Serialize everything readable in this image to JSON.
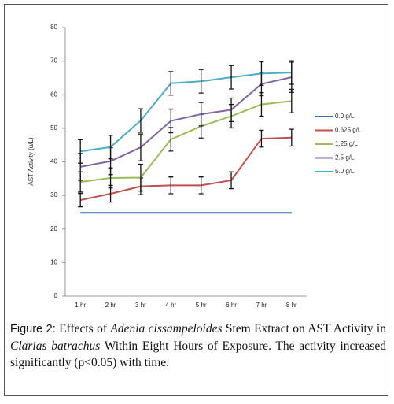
{
  "chart_data": {
    "type": "line",
    "ylabel": "AST Activity (u/L)",
    "categories": [
      "1 hr",
      "2 hr",
      "3 hr",
      "4 hr",
      "5 hr",
      "6 hr",
      "7 hr",
      "8 hr"
    ],
    "ylim": [
      0,
      80
    ],
    "yticks": [
      0,
      10,
      20,
      30,
      40,
      50,
      60,
      70,
      80
    ],
    "series": [
      {
        "name": "0.0 g/L",
        "color": "#3a6fb0",
        "values": [
          24.8,
          24.8,
          24.8,
          24.8,
          24.8,
          24.8,
          24.8,
          24.8
        ]
      },
      {
        "name": "0.625 g/L",
        "color": "#c0504d",
        "values": [
          28.6,
          30.5,
          32.7,
          33,
          33,
          34.5,
          46.9,
          47.2
        ],
        "errors": [
          2,
          2.5,
          2.5,
          2.5,
          2.5,
          2.5,
          2.5,
          2.5
        ]
      },
      {
        "name": "1.25 g/L",
        "color": "#9bbb59",
        "values": [
          34,
          35.2,
          35.3,
          46.7,
          50.6,
          53.6,
          57.1,
          58.1
        ],
        "errors": [
          3,
          3,
          4,
          3.5,
          3.5,
          3.5,
          3.5,
          3.5
        ]
      },
      {
        "name": "2.5 g/L",
        "color": "#8064a2",
        "values": [
          38.5,
          40.2,
          44.3,
          52.2,
          54.2,
          55.5,
          63.2,
          65.2
        ],
        "errors": [
          4,
          4,
          4,
          3.5,
          3.5,
          3.5,
          3.5,
          4.5
        ]
      },
      {
        "name": "5.0 g/L",
        "color": "#4bacc6",
        "values": [
          43.1,
          44.4,
          52.3,
          63.4,
          64,
          65.2,
          66.3,
          66.6
        ],
        "errors": [
          3.5,
          3.5,
          3.5,
          3.5,
          3.5,
          3.5,
          3.5,
          3.5
        ]
      }
    ],
    "legend": "right"
  },
  "caption": {
    "label": "Figure 2:",
    "parts": [
      {
        "text": "Effects of ",
        "italic": false
      },
      {
        "text": "Adenia cissampeloides",
        "italic": true
      },
      {
        "text": "Stem Extract on AST Activity in ",
        "italic": false
      },
      {
        "text": "Clarias batrachus",
        "italic": true
      },
      {
        "text": "Within Eight Hours of Exposure. The activity increased significantly (p<0.05) with time.",
        "italic": false
      }
    ]
  }
}
